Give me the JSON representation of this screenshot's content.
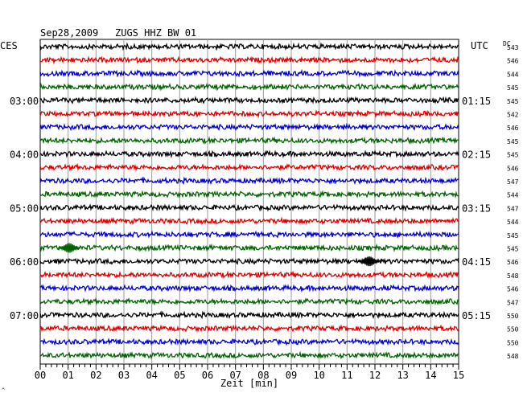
{
  "header": {
    "date": "Sep28,2009",
    "station": "ZUGS HHZ BW 01",
    "left_tz": "CES",
    "right_tz": "UTC",
    "dc_label": "DC"
  },
  "chart_data": {
    "type": "line",
    "title": "Sep28,2009   ZUGS HHZ BW 01",
    "xlabel": "Zeit [min]",
    "xlim": [
      0,
      15
    ],
    "x_ticks": [
      "00",
      "01",
      "02",
      "03",
      "04",
      "05",
      "06",
      "07",
      "08",
      "09",
      "10",
      "11",
      "12",
      "13",
      "14",
      "15"
    ],
    "left_hour_labels": [
      {
        "row": 4,
        "label": "03:00"
      },
      {
        "row": 8,
        "label": "04:00"
      },
      {
        "row": 12,
        "label": "05:00"
      },
      {
        "row": 16,
        "label": "06:00"
      },
      {
        "row": 20,
        "label": "07:00"
      }
    ],
    "right_hour_labels": [
      {
        "row": 4,
        "label": "01:15"
      },
      {
        "row": 8,
        "label": "02:15"
      },
      {
        "row": 12,
        "label": "03:15"
      },
      {
        "row": 16,
        "label": "04:15"
      },
      {
        "row": 20,
        "label": "05:15"
      }
    ],
    "series_colors": [
      "#000000",
      "#e00000",
      "#0000d0",
      "#006400"
    ],
    "dc_values": [
      543,
      546,
      544,
      545,
      545,
      542,
      546,
      545,
      545,
      546,
      547,
      544,
      547,
      544,
      545,
      545,
      546,
      548,
      546,
      547,
      550,
      550,
      550,
      548
    ],
    "events": [
      {
        "row": 15,
        "minute": 1.05
      },
      {
        "row": 16,
        "minute": 11.8
      }
    ]
  },
  "footer": {
    "corner_mark": "^"
  }
}
